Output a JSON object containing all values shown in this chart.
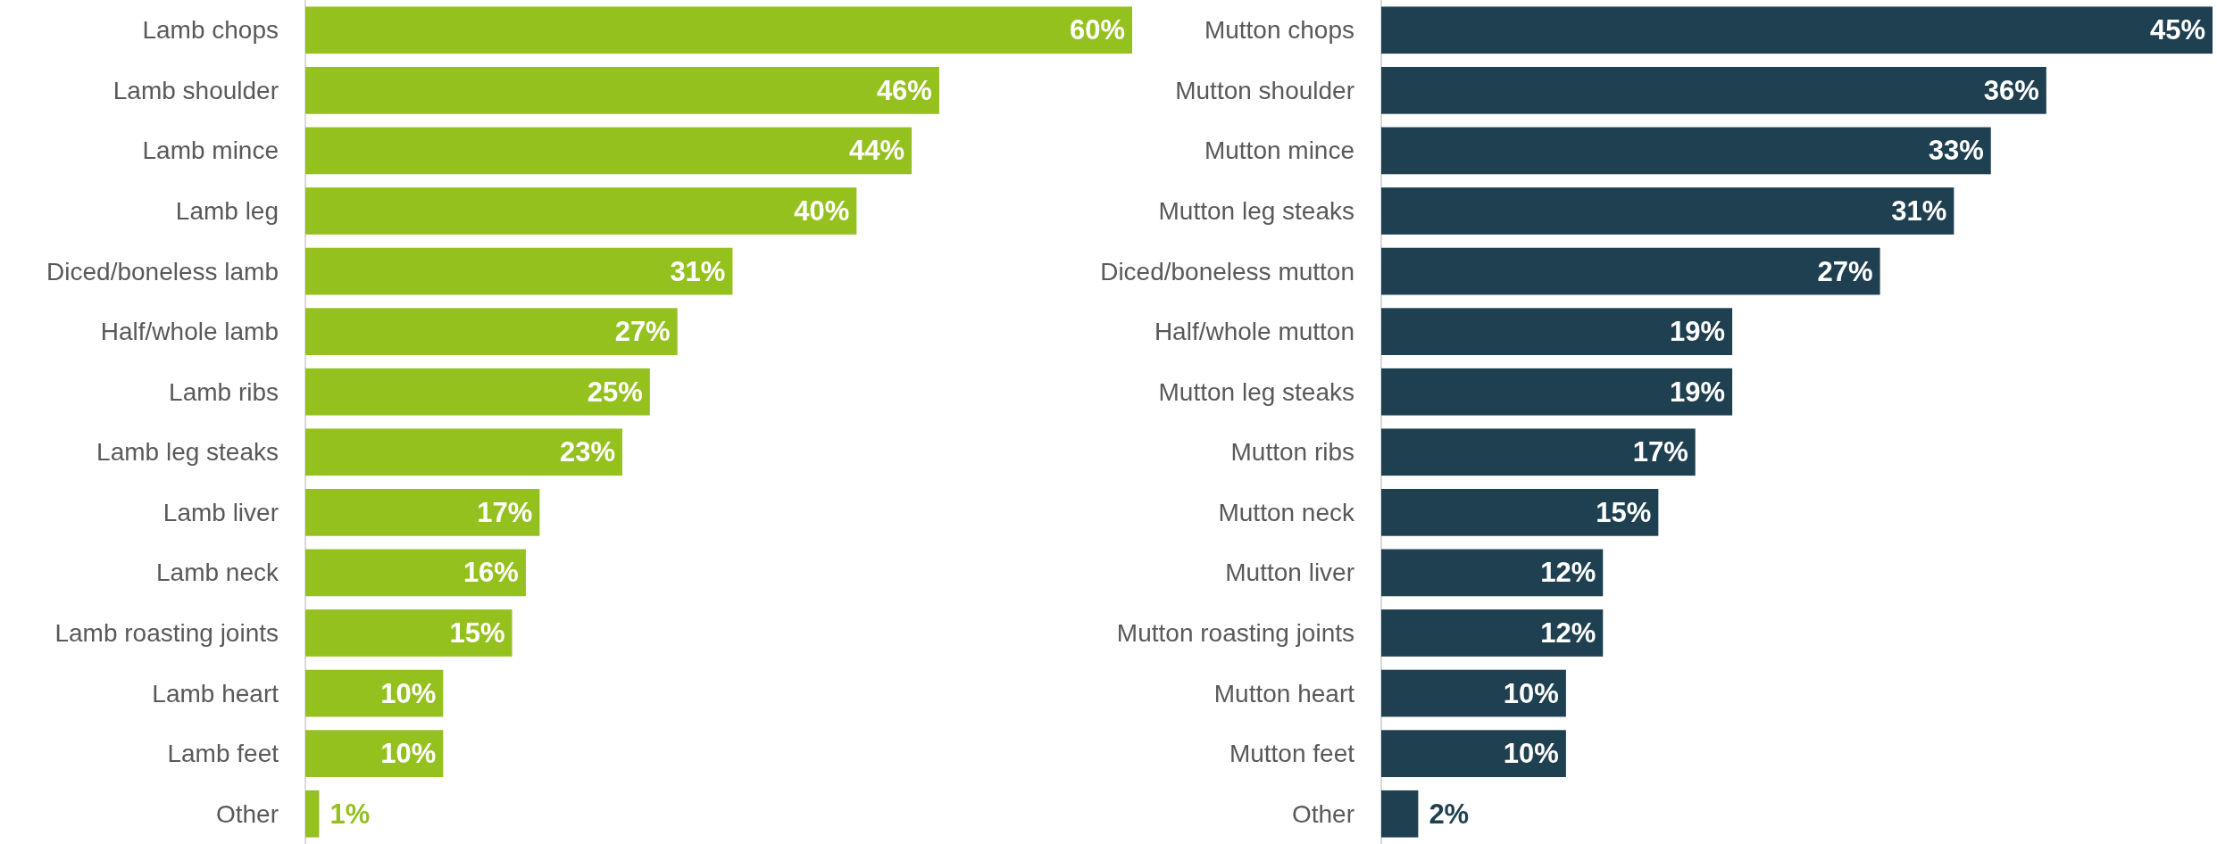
{
  "chart_data": [
    {
      "type": "bar",
      "orientation": "horizontal",
      "categories": [
        "Lamb chops",
        "Lamb shoulder",
        "Lamb mince",
        "Lamb leg",
        "Diced/boneless lamb",
        "Half/whole lamb",
        "Lamb ribs",
        "Lamb leg steaks",
        "Lamb liver",
        "Lamb neck",
        "Lamb roasting joints",
        "Lamb heart",
        "Lamb feet",
        "Other"
      ],
      "values": [
        60,
        46,
        44,
        40,
        31,
        27,
        25,
        23,
        17,
        16,
        15,
        10,
        10,
        1
      ],
      "value_labels": [
        "60%",
        "46%",
        "44%",
        "40%",
        "31%",
        "27%",
        "25%",
        "23%",
        "17%",
        "16%",
        "15%",
        "10%",
        "10%",
        "1%"
      ],
      "color": "#95c11f"
    },
    {
      "type": "bar",
      "orientation": "horizontal",
      "categories": [
        "Mutton chops",
        "Mutton shoulder",
        "Mutton mince",
        "Mutton leg steaks",
        "Diced/boneless mutton",
        "Half/whole mutton",
        "Mutton leg steaks",
        "Mutton ribs",
        "Mutton neck",
        "Mutton liver",
        "Mutton roasting joints",
        "Mutton heart",
        "Mutton feet",
        "Other"
      ],
      "values": [
        45,
        36,
        33,
        31,
        27,
        19,
        19,
        17,
        15,
        12,
        12,
        10,
        10,
        2
      ],
      "value_labels": [
        "45%",
        "36%",
        "33%",
        "31%",
        "27%",
        "19%",
        "19%",
        "17%",
        "15%",
        "12%",
        "12%",
        "10%",
        "10%",
        "2%"
      ],
      "color": "#1f4050"
    }
  ]
}
